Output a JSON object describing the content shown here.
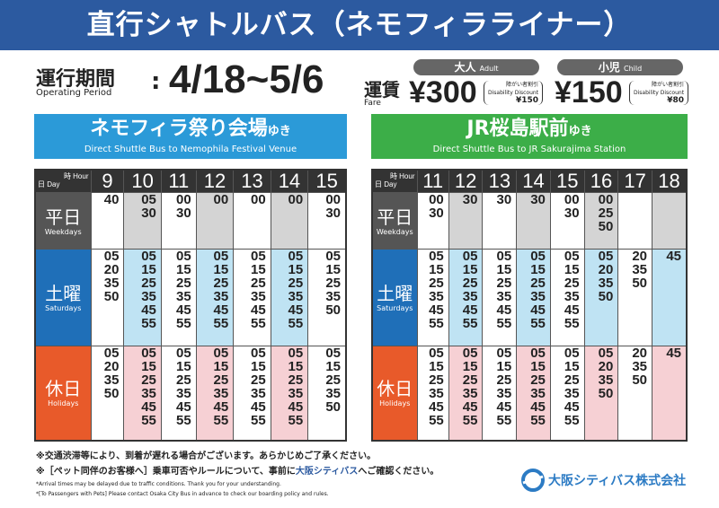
{
  "title": "直行シャトルバス（ネモフィラライナー）",
  "period": {
    "label_jp": "運行期間",
    "label_en": "Operating Period",
    "colon": ":",
    "dates": "4/18~5/6"
  },
  "fare": {
    "label_jp": "運賃",
    "label_en": "Fare",
    "adult": {
      "jp": "大人",
      "en": "Adult",
      "price": "¥300",
      "disc_jp": "障がい者割引",
      "disc_en": "Disability Discount",
      "disc_price": "¥150"
    },
    "child": {
      "jp": "小児",
      "en": "Child",
      "price": "¥150",
      "disc_jp": "障がい者割引",
      "disc_en": "Disability Discount",
      "disc_price": "¥80"
    }
  },
  "corner": {
    "hour": "時 Hour",
    "day": "日 Day"
  },
  "day_labels": {
    "weekdays": {
      "jp": "平日",
      "en": "Weekdays"
    },
    "saturdays": {
      "jp": "土曜",
      "en": "Saturdays"
    },
    "holidays": {
      "jp": "休日",
      "en": "Holidays"
    }
  },
  "routes": [
    {
      "dest_jp": "ネモフィラ祭り会場",
      "suffix": "ゆき",
      "dest_en": "Direct Shuttle Bus to Nemophila Festival Venue",
      "color": "#2b9ad8",
      "hours": [
        "9",
        "10",
        "11",
        "12",
        "13",
        "14",
        "15"
      ],
      "weekdays": [
        [
          "40"
        ],
        [
          "05",
          "30"
        ],
        [
          "00",
          "30"
        ],
        [
          "00"
        ],
        [
          "00"
        ],
        [
          "00"
        ],
        [
          "00",
          "30"
        ]
      ],
      "saturdays": [
        [
          "05",
          "20",
          "35",
          "50"
        ],
        [
          "05",
          "15",
          "25",
          "35",
          "45",
          "55"
        ],
        [
          "05",
          "15",
          "25",
          "35",
          "45",
          "55"
        ],
        [
          "05",
          "15",
          "25",
          "35",
          "45",
          "55"
        ],
        [
          "05",
          "15",
          "25",
          "35",
          "45",
          "55"
        ],
        [
          "05",
          "15",
          "25",
          "35",
          "45",
          "55"
        ],
        [
          "05",
          "15",
          "25",
          "35",
          "50"
        ]
      ],
      "holidays": [
        [
          "05",
          "20",
          "35",
          "50"
        ],
        [
          "05",
          "15",
          "25",
          "35",
          "45",
          "55"
        ],
        [
          "05",
          "15",
          "25",
          "35",
          "45",
          "55"
        ],
        [
          "05",
          "15",
          "25",
          "35",
          "45",
          "55"
        ],
        [
          "05",
          "15",
          "25",
          "35",
          "45",
          "55"
        ],
        [
          "05",
          "15",
          "25",
          "35",
          "45",
          "55"
        ],
        [
          "05",
          "15",
          "25",
          "35",
          "50"
        ]
      ]
    },
    {
      "dest_jp": "JR桜島駅前",
      "suffix": "ゆき",
      "dest_en": "Direct Shuttle Bus to JR Sakurajima Station",
      "color": "#3cae48",
      "hours": [
        "11",
        "12",
        "13",
        "14",
        "15",
        "16",
        "17",
        "18"
      ],
      "weekdays": [
        [
          "00",
          "30"
        ],
        [
          "30"
        ],
        [
          "30"
        ],
        [
          "30"
        ],
        [
          "00",
          "30"
        ],
        [
          "00",
          "25",
          "50"
        ],
        [],
        []
      ],
      "saturdays": [
        [
          "05",
          "15",
          "25",
          "35",
          "45",
          "55"
        ],
        [
          "05",
          "15",
          "25",
          "35",
          "45",
          "55"
        ],
        [
          "05",
          "15",
          "25",
          "35",
          "45",
          "55"
        ],
        [
          "05",
          "15",
          "25",
          "35",
          "45",
          "55"
        ],
        [
          "05",
          "15",
          "25",
          "35",
          "45",
          "55"
        ],
        [
          "05",
          "20",
          "35",
          "50"
        ],
        [
          "20",
          "35",
          "50"
        ],
        [
          "45"
        ]
      ],
      "holidays": [
        [
          "05",
          "15",
          "25",
          "35",
          "45",
          "55"
        ],
        [
          "05",
          "15",
          "25",
          "35",
          "45",
          "55"
        ],
        [
          "05",
          "15",
          "25",
          "35",
          "45",
          "55"
        ],
        [
          "05",
          "15",
          "25",
          "35",
          "45",
          "55"
        ],
        [
          "05",
          "15",
          "25",
          "35",
          "45",
          "55"
        ],
        [
          "05",
          "20",
          "35",
          "50"
        ],
        [
          "20",
          "35",
          "50"
        ],
        [
          "45"
        ]
      ]
    }
  ],
  "notes": {
    "jp1": "※交通渋滞等により、到着が遅れる場合がございます。あらかじめご了承ください。",
    "jp2_a": "※［ペット同伴のお客様へ］乗車可否やルールについて、事前に",
    "jp2_link": "大阪シティバス",
    "jp2_b": "へご確認ください。",
    "en1": "*Arrival times may be delayed due to traffic conditions. Thank you for your understanding.",
    "en2": "*[To Passengers with Pets] Please contact Osaka City Bus in advance to check our boarding policy and rules."
  },
  "company": "大阪シティバス株式会社"
}
